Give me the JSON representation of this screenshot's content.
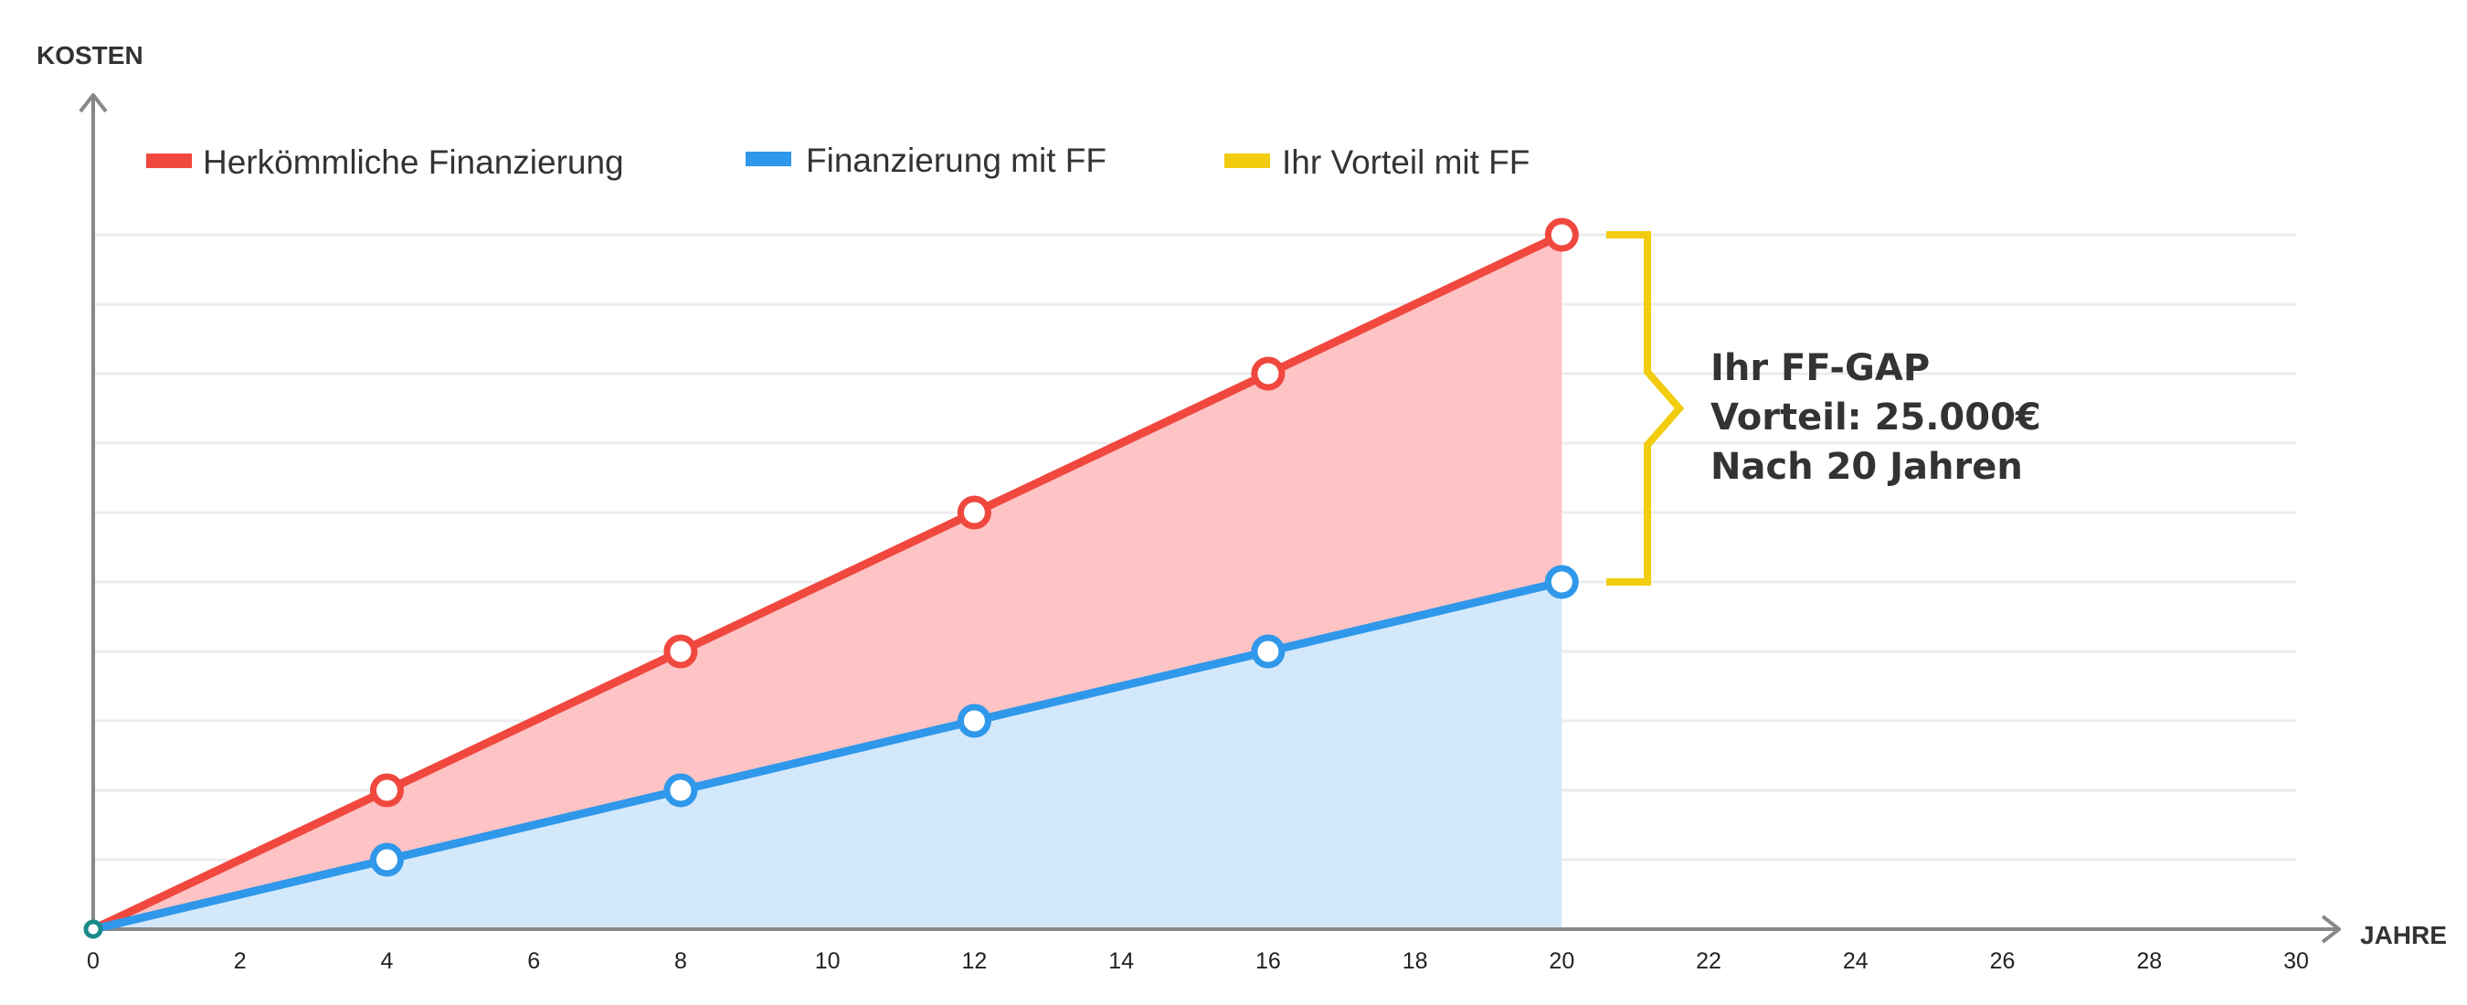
{
  "chart_data": {
    "type": "line",
    "y_axis_label": "KOSTEN",
    "x_axis_label": "JAHRE",
    "x_ticks": [
      0,
      2,
      4,
      6,
      8,
      10,
      12,
      14,
      16,
      18,
      20,
      22,
      24,
      26,
      28,
      30
    ],
    "xlim": [
      0,
      30
    ],
    "ylim": [
      0,
      10
    ],
    "grid": true,
    "legend_position": "top-left",
    "series": [
      {
        "name": "Herkömmliche Finanzierung",
        "color": "#f0483e",
        "fill": "#fdc3c5",
        "x": [
          0,
          4,
          8,
          12,
          16,
          20
        ],
        "values": [
          0,
          2,
          4,
          6,
          8,
          10
        ]
      },
      {
        "name": "Finanzierung mit FF",
        "color": "#2f98ea",
        "fill": "#d3e8fb",
        "x": [
          0,
          4,
          8,
          12,
          16,
          20
        ],
        "values": [
          0,
          1,
          2,
          3,
          4,
          5
        ]
      }
    ],
    "gap_legend": {
      "name": "Ihr Vorteil mit FF",
      "color": "#f2cc0e"
    },
    "annotation": {
      "lines": [
        "Ihr FF-GAP",
        "Vorteil: 25.000€",
        "Nach 20 Jahren"
      ],
      "x": 20,
      "y_from": 5,
      "y_to": 10
    },
    "colors": {
      "axis": "#888888",
      "grid": "#ececec",
      "origin": "#1a8a8a"
    }
  }
}
